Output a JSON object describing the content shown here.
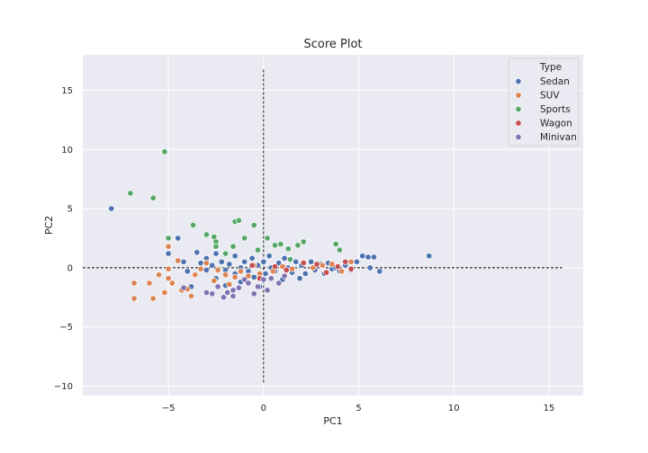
{
  "chart_data": {
    "type": "scatter",
    "title": "Score Plot",
    "xlabel": "PC1",
    "ylabel": "PC2",
    "xlim": [
      -9.5,
      16.8
    ],
    "ylim": [
      -10.8,
      18.0
    ],
    "xticks": [
      -5,
      0,
      5,
      10,
      15
    ],
    "yticks": [
      -10,
      -5,
      0,
      5,
      10,
      15
    ],
    "grid": true,
    "background": "#eaeaf2",
    "reference_lines": {
      "horizontal": {
        "y": 0,
        "x_range": [
          -9.5,
          15.7
        ]
      },
      "vertical": {
        "x": 0,
        "y_range": [
          -9.7,
          16.8
        ]
      }
    },
    "legend": {
      "title": "Type",
      "placement": "top-right",
      "entries": [
        "Sedan",
        "SUV",
        "Sports",
        "Wagon",
        "Minivan"
      ]
    },
    "series": [
      {
        "name": "Sedan",
        "color": "#4c72b0",
        "points": [
          [
            -8.0,
            5.0
          ],
          [
            -5.0,
            1.2
          ],
          [
            -4.5,
            2.5
          ],
          [
            -4.2,
            0.5
          ],
          [
            -4.0,
            -0.3
          ],
          [
            -3.8,
            -1.6
          ],
          [
            -3.5,
            1.3
          ],
          [
            -3.3,
            0.4
          ],
          [
            -3.0,
            -0.2
          ],
          [
            -3.0,
            0.8
          ],
          [
            -2.7,
            0.2
          ],
          [
            -2.5,
            -0.9
          ],
          [
            -2.5,
            1.2
          ],
          [
            -2.2,
            0.5
          ],
          [
            -2.0,
            -0.2
          ],
          [
            -2.0,
            -1.5
          ],
          [
            -1.8,
            0.3
          ],
          [
            -1.5,
            -0.5
          ],
          [
            -1.5,
            1.0
          ],
          [
            -1.2,
            0.0
          ],
          [
            -1.2,
            -1.2
          ],
          [
            -1.0,
            0.5
          ],
          [
            -0.8,
            -0.3
          ],
          [
            -0.6,
            0.8
          ],
          [
            -0.5,
            -0.8
          ],
          [
            -0.3,
            0.2
          ],
          [
            -0.2,
            -1.6
          ],
          [
            0.0,
            0.5
          ],
          [
            0.1,
            -0.5
          ],
          [
            0.3,
            1.0
          ],
          [
            0.4,
            0.0
          ],
          [
            0.6,
            -0.3
          ],
          [
            0.8,
            0.4
          ],
          [
            1.0,
            -1.0
          ],
          [
            1.1,
            0.8
          ],
          [
            1.3,
            0.0
          ],
          [
            1.5,
            -0.4
          ],
          [
            1.7,
            0.5
          ],
          [
            1.9,
            -0.9
          ],
          [
            2.0,
            0.2
          ],
          [
            2.2,
            -0.5
          ],
          [
            2.5,
            0.5
          ],
          [
            2.7,
            -0.2
          ],
          [
            3.0,
            0.3
          ],
          [
            3.2,
            -0.5
          ],
          [
            3.4,
            0.4
          ],
          [
            3.6,
            -0.1
          ],
          [
            3.8,
            0.0
          ],
          [
            4.0,
            -0.3
          ],
          [
            4.3,
            0.2
          ],
          [
            4.6,
            -0.2
          ],
          [
            4.9,
            0.5
          ],
          [
            5.2,
            1.0
          ],
          [
            5.5,
            0.9
          ],
          [
            5.8,
            0.9
          ],
          [
            6.1,
            -0.3
          ],
          [
            5.6,
            0.0
          ],
          [
            8.7,
            1.0
          ]
        ]
      },
      {
        "name": "SUV",
        "color": "#dd8452",
        "points": [
          [
            -6.8,
            -1.3
          ],
          [
            -6.8,
            -2.6
          ],
          [
            -6.0,
            -1.3
          ],
          [
            -5.8,
            -2.6
          ],
          [
            -5.5,
            -0.6
          ],
          [
            -5.2,
            -2.1
          ],
          [
            -5.0,
            -0.1
          ],
          [
            -5.0,
            -0.9
          ],
          [
            -5.0,
            1.8
          ],
          [
            -4.8,
            -1.3
          ],
          [
            -4.5,
            0.6
          ],
          [
            -4.3,
            -1.9
          ],
          [
            -4.0,
            -1.8
          ],
          [
            -3.8,
            -2.4
          ],
          [
            -3.6,
            -0.6
          ],
          [
            -3.3,
            -0.1
          ],
          [
            -3.0,
            0.4
          ],
          [
            -2.6,
            -1.1
          ],
          [
            -2.4,
            -0.2
          ],
          [
            -2.0,
            -0.6
          ],
          [
            -1.8,
            -1.4
          ],
          [
            -1.5,
            -0.8
          ],
          [
            -1.2,
            -0.3
          ],
          [
            -0.8,
            -0.7
          ],
          [
            -0.5,
            0.2
          ],
          [
            -0.2,
            -0.5
          ],
          [
            0.5,
            -0.3
          ],
          [
            1.0,
            0.1
          ],
          [
            1.5,
            -0.1
          ],
          [
            2.1,
            0.5
          ],
          [
            2.6,
            0.0
          ],
          [
            3.1,
            0.2
          ],
          [
            3.6,
            0.3
          ],
          [
            4.1,
            -0.3
          ],
          [
            4.6,
            0.5
          ]
        ]
      },
      {
        "name": "Sports",
        "color": "#55a868",
        "points": [
          [
            -5.2,
            9.8
          ],
          [
            -7.0,
            6.3
          ],
          [
            -5.8,
            5.9
          ],
          [
            -5.0,
            2.5
          ],
          [
            -3.7,
            3.6
          ],
          [
            -3.0,
            2.8
          ],
          [
            -2.6,
            2.6
          ],
          [
            -2.5,
            2.2
          ],
          [
            -2.5,
            1.8
          ],
          [
            -1.5,
            3.9
          ],
          [
            -1.3,
            4.0
          ],
          [
            -1.6,
            1.8
          ],
          [
            -1.0,
            2.5
          ],
          [
            -0.5,
            3.6
          ],
          [
            -0.3,
            1.5
          ],
          [
            -2.0,
            1.2
          ],
          [
            0.2,
            2.5
          ],
          [
            0.6,
            1.9
          ],
          [
            0.9,
            2.0
          ],
          [
            1.3,
            1.6
          ],
          [
            1.8,
            1.9
          ],
          [
            2.1,
            2.2
          ],
          [
            1.4,
            0.7
          ],
          [
            3.8,
            2.0
          ],
          [
            4.0,
            1.5
          ]
        ]
      },
      {
        "name": "Wagon",
        "color": "#c44e52",
        "points": [
          [
            -0.6,
            0.2
          ],
          [
            0.6,
            0.1
          ],
          [
            1.2,
            -0.2
          ],
          [
            2.1,
            0.4
          ],
          [
            2.8,
            0.3
          ],
          [
            3.3,
            -0.4
          ],
          [
            3.9,
            0.1
          ],
          [
            4.3,
            0.5
          ],
          [
            4.6,
            -0.1
          ],
          [
            -0.2,
            -0.9
          ]
        ]
      },
      {
        "name": "Minivan",
        "color": "#8172b2",
        "points": [
          [
            -4.2,
            -1.7
          ],
          [
            -3.0,
            -2.1
          ],
          [
            -2.7,
            -2.2
          ],
          [
            -2.4,
            -1.6
          ],
          [
            -2.1,
            -2.5
          ],
          [
            -1.9,
            -2.1
          ],
          [
            -1.6,
            -1.9
          ],
          [
            -1.6,
            -2.4
          ],
          [
            -1.3,
            -1.7
          ],
          [
            -1.0,
            -1.0
          ],
          [
            -0.8,
            -1.3
          ],
          [
            -0.5,
            -2.2
          ],
          [
            -0.3,
            -1.6
          ],
          [
            0.0,
            -1.0
          ],
          [
            0.2,
            -1.9
          ],
          [
            0.4,
            -0.9
          ],
          [
            0.8,
            -1.3
          ],
          [
            1.1,
            -0.7
          ]
        ]
      }
    ]
  }
}
